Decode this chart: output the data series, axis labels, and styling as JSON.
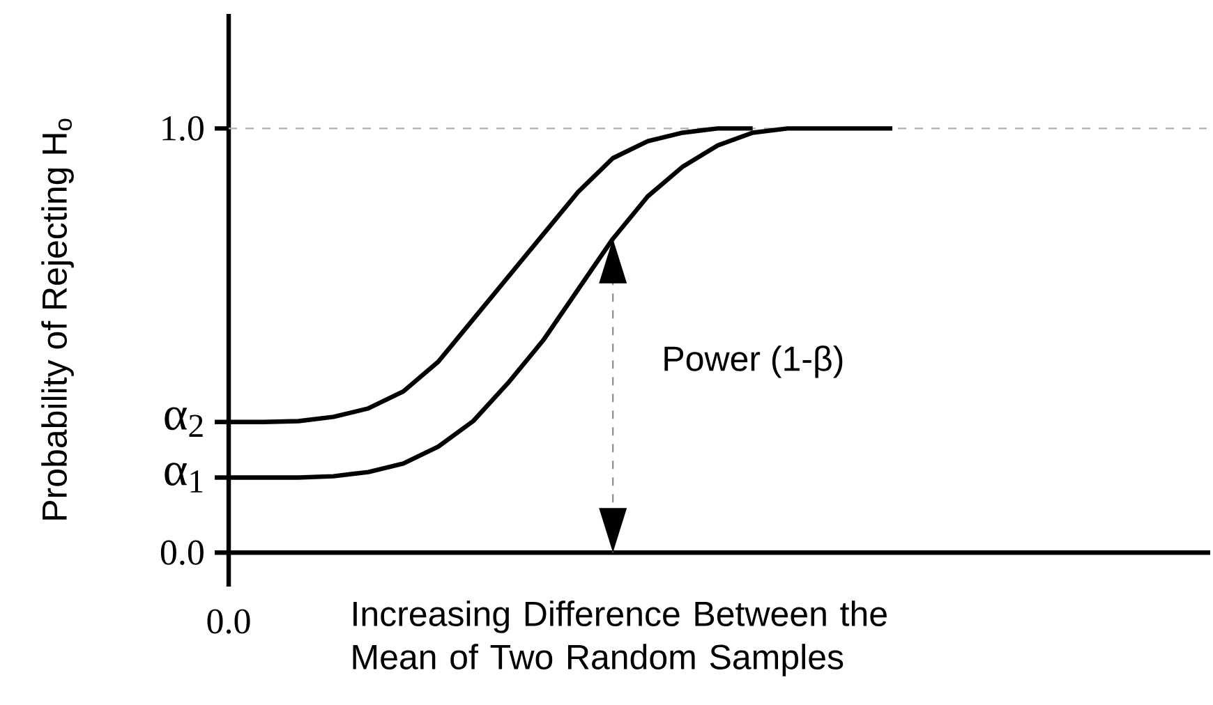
{
  "chart_data": {
    "type": "line",
    "ylabel": "Probability of Rejecting H$_{o}$",
    "xlabel": "Increasing Difference Between the Mean of Two Random Samples",
    "categories": [
      null,
      null,
      null,
      null,
      null,
      null,
      null,
      null,
      null,
      null,
      null,
      null,
      null,
      null,
      null,
      null,
      null,
      null,
      null,
      null,
      null,
      null,
      null,
      null,
      null,
      null,
      null,
      null,
      null
    ],
    "series": [
      {
        "name": "α$_{2}$",
        "color": "#000000",
        "values": [
          0.308,
          0.308,
          0.31,
          0.32,
          0.34,
          0.38,
          0.45,
          0.55,
          0.65,
          0.75,
          0.85,
          0.93,
          0.97,
          0.99,
          1.0,
          1.0,
          null,
          null,
          null,
          null,
          null,
          null,
          null,
          null,
          null,
          null,
          null,
          null,
          null
        ]
      },
      {
        "name": "α$_{1}$",
        "color": "#000000",
        "values": [
          0.177,
          0.177,
          0.177,
          0.18,
          0.19,
          0.21,
          0.25,
          0.31,
          0.4,
          0.5,
          0.62,
          0.74,
          0.84,
          0.91,
          0.96,
          0.99,
          1.0,
          1.0,
          1.0,
          1.0,
          null,
          null,
          null,
          null,
          null,
          null,
          null,
          null,
          null
        ]
      }
    ],
    "ylim": [
      -0.08,
      1.27
    ],
    "yticks": [
      {
        "value": 0,
        "label": "0.0"
      },
      {
        "value": 1,
        "label": "1.0"
      }
    ],
    "ref_lines": [
      {
        "axis": "y",
        "value": 1,
        "color": "#b0b0b0",
        "line_style": "dashed"
      }
    ],
    "annotations": [
      "0.0",
      "Power (1-β)"
    ],
    "line_style": "solid",
    "marker": "none"
  }
}
